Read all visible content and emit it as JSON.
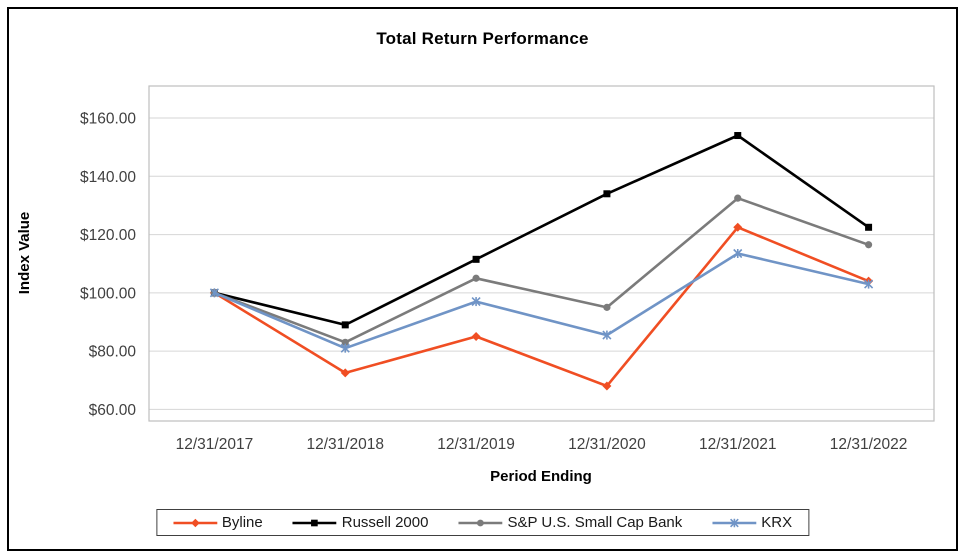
{
  "chart_data": {
    "type": "line",
    "title": "Total Return Performance",
    "xlabel": "Period Ending",
    "ylabel": "Index Value",
    "categories": [
      "12/31/2017",
      "12/31/2018",
      "12/31/2019",
      "12/31/2020",
      "12/31/2021",
      "12/31/2022"
    ],
    "series": [
      {
        "name": "Byline",
        "color": "#F04E23",
        "marker": "diamond",
        "values": [
          100,
          72.5,
          85,
          68,
          122.5,
          104
        ]
      },
      {
        "name": "Russell 2000",
        "color": "#000000",
        "marker": "square",
        "values": [
          100,
          89,
          111.5,
          134,
          154,
          122.5
        ]
      },
      {
        "name": "S&P U.S. Small Cap Bank",
        "color": "#7B7B7B",
        "marker": "circle",
        "values": [
          100,
          83,
          105,
          95,
          132.5,
          116.5
        ]
      },
      {
        "name": "KRX",
        "color": "#7094C6",
        "marker": "star",
        "values": [
          100,
          81,
          97,
          85.5,
          113.5,
          103
        ]
      }
    ],
    "ylim": [
      56,
      171
    ],
    "yticks": [
      60,
      80,
      100,
      120,
      140,
      160
    ],
    "ytick_prefix": "$",
    "ytick_decimals": 2,
    "grid": true,
    "legend_position": "bottom",
    "grid_color": "#D6D6D6",
    "axis_color": "#BFBFBF",
    "tick_label_color": "#404040"
  }
}
